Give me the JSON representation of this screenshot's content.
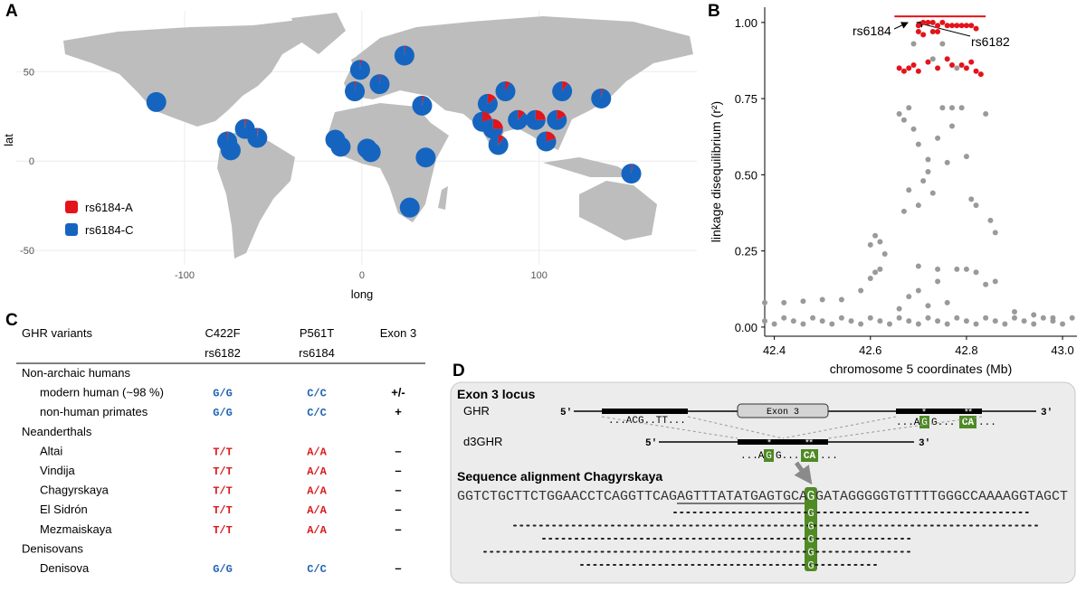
{
  "panel_labels": [
    "A",
    "B",
    "C",
    "D"
  ],
  "chart_data": [
    {
      "type": "pie-map",
      "xlabel": "long",
      "ylabel": "lat",
      "xlim": [
        -195,
        189
      ],
      "ylim": [
        -58,
        84
      ],
      "xticks": [
        -100,
        0,
        100
      ],
      "yticks": [
        -50,
        0,
        50
      ],
      "grid": true,
      "legend": "bottom-left",
      "series": [
        {
          "name": "rs6184-A",
          "color": "#e3141c"
        },
        {
          "name": "rs6184-C",
          "color": "#1565c0"
        }
      ],
      "points": {
        "lon": [
          -116,
          -76,
          -66,
          -59,
          -74,
          -1,
          -4,
          10,
          24,
          -15,
          -12,
          3,
          5,
          34,
          36,
          27,
          71,
          81,
          68,
          74,
          77,
          88,
          98,
          110,
          113,
          104,
          135,
          152
        ],
        "lat": [
          33,
          11,
          18,
          13,
          6,
          51,
          39,
          43,
          59,
          12,
          8,
          7,
          5,
          31,
          2,
          -26,
          32,
          39,
          22,
          18,
          9,
          23,
          23,
          23,
          39,
          11,
          35,
          -7
        ],
        "A": [
          0,
          2,
          3,
          2,
          0,
          2,
          2,
          2,
          2,
          0,
          0,
          0,
          0,
          3,
          0,
          0,
          15,
          8,
          20,
          25,
          10,
          12,
          25,
          18,
          10,
          20,
          3,
          2
        ],
        "C": [
          100,
          98,
          97,
          98,
          100,
          98,
          98,
          98,
          98,
          100,
          100,
          100,
          100,
          97,
          100,
          100,
          85,
          92,
          80,
          75,
          90,
          88,
          75,
          82,
          90,
          80,
          97,
          98
        ]
      }
    },
    {
      "type": "scatter",
      "xlabel": "chromosome 5 coordinates (Mb)",
      "ylabel": "linkage disequilibrium (r²)",
      "xlim": [
        42.38,
        43.03
      ],
      "ylim": [
        -0.03,
        1.05
      ],
      "xticks": [
        42.4,
        42.6,
        42.8,
        {
          "value": 43,
          "label": "43.0"
        }
      ],
      "yticks": [
        {
          "value": 0,
          "label": "0.00"
        },
        0.25,
        {
          "value": 0.5,
          "label": "0.50"
        },
        0.75,
        {
          "value": 1,
          "label": "1.00"
        }
      ],
      "grid": false,
      "highlight": {
        "x": [
          42.65,
          42.84
        ],
        "y": 1.02,
        "color": "#e3141c"
      },
      "annotations": [
        "rs6184",
        "rs6182"
      ],
      "series": [
        {
          "color": "#9a9a9a",
          "x": [
            42.38,
            42.4,
            42.42,
            42.44,
            42.46,
            42.48,
            42.5,
            42.52,
            42.54,
            42.56,
            42.58,
            42.6,
            42.62,
            42.64,
            42.66,
            42.68,
            42.7,
            42.72,
            42.74,
            42.76,
            42.78,
            42.8,
            42.82,
            42.84,
            42.86,
            42.88,
            42.9,
            42.92,
            42.94,
            42.96,
            42.98,
            43,
            43.02,
            42.38,
            42.42,
            42.46,
            42.5,
            42.54,
            42.58,
            42.6,
            42.61,
            42.62,
            42.6,
            42.62,
            42.61,
            42.63,
            42.66,
            42.68,
            42.7,
            42.72,
            42.74,
            42.76,
            42.78,
            42.8,
            42.82,
            42.84,
            42.86,
            42.9,
            42.94,
            42.98,
            42.7,
            42.74,
            42.67,
            42.66,
            42.68,
            42.69,
            42.7,
            42.72,
            42.71,
            42.73,
            42.72,
            42.68,
            42.67,
            42.7,
            42.75,
            42.77,
            42.79,
            42.77,
            42.8,
            42.81,
            42.82,
            42.85,
            42.86,
            42.84,
            42.78,
            42.73,
            42.75,
            42.76,
            42.74,
            42.69
          ],
          "y": [
            0.02,
            0.01,
            0.03,
            0.02,
            0.01,
            0.03,
            0.02,
            0.01,
            0.03,
            0.02,
            0.01,
            0.03,
            0.02,
            0.01,
            0.03,
            0.02,
            0.01,
            0.03,
            0.02,
            0.01,
            0.03,
            0.02,
            0.01,
            0.03,
            0.02,
            0.01,
            0.03,
            0.02,
            0.01,
            0.03,
            0.02,
            0.01,
            0.03,
            0.08,
            0.08,
            0.085,
            0.09,
            0.09,
            0.12,
            0.16,
            0.18,
            0.19,
            0.27,
            0.28,
            0.3,
            0.24,
            0.06,
            0.1,
            0.12,
            0.07,
            0.15,
            0.08,
            0.19,
            0.19,
            0.18,
            0.14,
            0.15,
            0.05,
            0.04,
            0.03,
            0.2,
            0.19,
            0.68,
            0.7,
            0.72,
            0.65,
            0.6,
            0.55,
            0.48,
            0.44,
            0.51,
            0.45,
            0.38,
            0.4,
            0.72,
            0.72,
            0.72,
            0.66,
            0.56,
            0.42,
            0.4,
            0.35,
            0.31,
            0.7,
            0.85,
            0.88,
            0.93,
            0.54,
            0.62,
            0.93
          ]
        },
        {
          "color": "#e3141c",
          "x": [
            42.7,
            42.71,
            42.72,
            42.73,
            42.74,
            42.75,
            42.76,
            42.77,
            42.78,
            42.79,
            42.8,
            42.81,
            42.82,
            42.7,
            42.71,
            42.73,
            42.74,
            42.66,
            42.67,
            42.68,
            42.69,
            42.7,
            42.72,
            42.74,
            42.76,
            42.77,
            42.79,
            42.8,
            42.82,
            42.83,
            42.81
          ],
          "y": [
            0.99,
            1,
            1,
            1,
            0.99,
            1,
            0.99,
            0.99,
            0.99,
            0.99,
            0.99,
            0.99,
            0.98,
            0.97,
            0.96,
            0.97,
            0.97,
            0.85,
            0.84,
            0.85,
            0.86,
            0.84,
            0.87,
            0.85,
            0.88,
            0.86,
            0.86,
            0.85,
            0.84,
            0.83,
            0.87
          ]
        }
      ]
    }
  ],
  "table": {
    "columns": [
      {
        "label": "GHR variants"
      },
      {
        "label": "C422F",
        "id": "rs6182"
      },
      {
        "label": "P561T",
        "id": "rs6184"
      },
      {
        "label": "Exon 3"
      }
    ],
    "groups": [
      {
        "name": "Non-archaic humans",
        "rows": [
          {
            "cells": [
              "modern human (~98 %)",
              "G/G",
              "C/C",
              "+/-"
            ],
            "color": "#1f63b5"
          },
          {
            "cells": [
              "non-human primates",
              "G/G",
              "C/C",
              "+"
            ],
            "color": "#1f63b5"
          }
        ]
      },
      {
        "name": "Neanderthals",
        "rows": [
          {
            "cells": [
              "Altai",
              "T/T",
              "A/A",
              "–"
            ],
            "color": "#d7191c"
          },
          {
            "cells": [
              "Vindija",
              "T/T",
              "A/A",
              "–"
            ],
            "color": "#d7191c"
          },
          {
            "cells": [
              "Chagyrskaya",
              "T/T",
              "A/A",
              "–"
            ],
            "color": "#d7191c"
          },
          {
            "cells": [
              "El Sidrón",
              "T/T",
              "A/A",
              "–"
            ],
            "color": "#d7191c"
          },
          {
            "cells": [
              "Mezmaiskaya",
              "T/T",
              "A/A",
              "–"
            ],
            "color": "#d7191c"
          }
        ]
      },
      {
        "name": "Denisovans",
        "rows": [
          {
            "cells": [
              "Denisova",
              "G/G",
              "C/C",
              "–"
            ],
            "color": "#1f63b5"
          }
        ]
      }
    ]
  },
  "diagram": {
    "title": "Exon 3 locus",
    "ghr": {
      "name": "GHR",
      "five": "5'",
      "three": "3'",
      "exon": "Exon 3",
      "left_seq": "...ACG..TT...",
      "pre": "...A",
      "snp1": "G",
      "mid": "G...",
      "snp2": "CA",
      "post": "...",
      "star1": "*",
      "star2": "**"
    },
    "d3ghr": {
      "name": "d3GHR",
      "five": "5'",
      "three": "3'",
      "pre": "...A",
      "snp1": "G",
      "mid": "G....",
      "snp2": "CA",
      "post": "...",
      "star1": "*",
      "star2": "**"
    },
    "alignment": {
      "title": "Sequence alignment Chagyrskaya",
      "left": "GGTCTGCTTCTGGAACCTCAGGTTCAGAGTTTATATGAGTGCA",
      "base": "G",
      "right": "GATAGGGGGTGTTTTGGGCCAAAAGGTAGCT",
      "reads": [
        "G",
        "G",
        "G",
        "G",
        "G"
      ]
    }
  }
}
